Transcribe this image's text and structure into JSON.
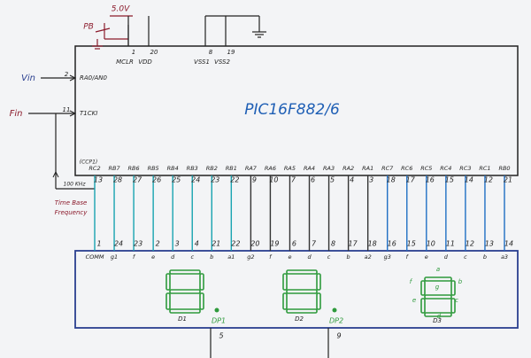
{
  "supply": {
    "voltage": "5.0V",
    "button": "PB"
  },
  "chip": {
    "name": "PIC16F882/6",
    "top_pins": [
      {
        "number": 1,
        "label": "MCLR"
      },
      {
        "number": 20,
        "label": "VDD"
      },
      {
        "number": 8,
        "label": "VSS1"
      },
      {
        "number": 19,
        "label": "VSS2"
      }
    ],
    "left_pins": [
      {
        "signal": "Vin",
        "number": 2,
        "label": "RA0/AN0"
      },
      {
        "signal": "Fin",
        "number": 11,
        "label": "T1CKI"
      }
    ]
  },
  "timebase": {
    "frequency": "100 KHz",
    "note": [
      "Time Base",
      "Frequency"
    ]
  },
  "ccp_note": "(CCP1)",
  "columns": [
    {
      "label": "RC2",
      "pin": 13,
      "display_pin": 1,
      "segment": "COMM"
    },
    {
      "label": "RB7",
      "pin": 28,
      "display_pin": 24,
      "segment": "g1"
    },
    {
      "label": "RB6",
      "pin": 27,
      "display_pin": 23,
      "segment": "f"
    },
    {
      "label": "RB5",
      "pin": 26,
      "display_pin": 2,
      "segment": "e"
    },
    {
      "label": "RB4",
      "pin": 25,
      "display_pin": 3,
      "segment": "d"
    },
    {
      "label": "RB3",
      "pin": 24,
      "display_pin": 4,
      "segment": "c"
    },
    {
      "label": "RB2",
      "pin": 23,
      "display_pin": 21,
      "segment": "b"
    },
    {
      "label": "RB1",
      "pin": 22,
      "display_pin": 22,
      "segment": "a1"
    },
    {
      "label": "RA7",
      "pin": 9,
      "display_pin": 20,
      "segment": "g2"
    },
    {
      "label": "RA6",
      "pin": 10,
      "display_pin": 19,
      "segment": "f"
    },
    {
      "label": "RA5",
      "pin": 7,
      "display_pin": 6,
      "segment": "e"
    },
    {
      "label": "RA4",
      "pin": 6,
      "display_pin": 7,
      "segment": "d"
    },
    {
      "label": "RA3",
      "pin": 5,
      "display_pin": 8,
      "segment": "c"
    },
    {
      "label": "RA2",
      "pin": 4,
      "display_pin": 17,
      "segment": "b"
    },
    {
      "label": "RA1",
      "pin": 3,
      "display_pin": 18,
      "segment": "a2"
    },
    {
      "label": "RC7",
      "pin": 18,
      "display_pin": 16,
      "segment": "g3"
    },
    {
      "label": "RC6",
      "pin": 17,
      "display_pin": 15,
      "segment": "f"
    },
    {
      "label": "RC5",
      "pin": 16,
      "display_pin": 10,
      "segment": "e"
    },
    {
      "label": "RC4",
      "pin": 15,
      "display_pin": 11,
      "segment": "d"
    },
    {
      "label": "RC3",
      "pin": 14,
      "display_pin": 12,
      "segment": "c"
    },
    {
      "label": "RC1",
      "pin": 12,
      "display_pin": 13,
      "segment": "b"
    },
    {
      "label": "RB0",
      "pin": 21,
      "display_pin": 14,
      "segment": "a3"
    }
  ],
  "displays": [
    {
      "name": "D1",
      "dp": "DP1",
      "dp_pin": 5
    },
    {
      "name": "D2",
      "dp": "DP2",
      "dp_pin": 9
    },
    {
      "name": "D3",
      "segments": [
        "a",
        "b",
        "c",
        "d",
        "e",
        "f",
        "g"
      ]
    }
  ]
}
